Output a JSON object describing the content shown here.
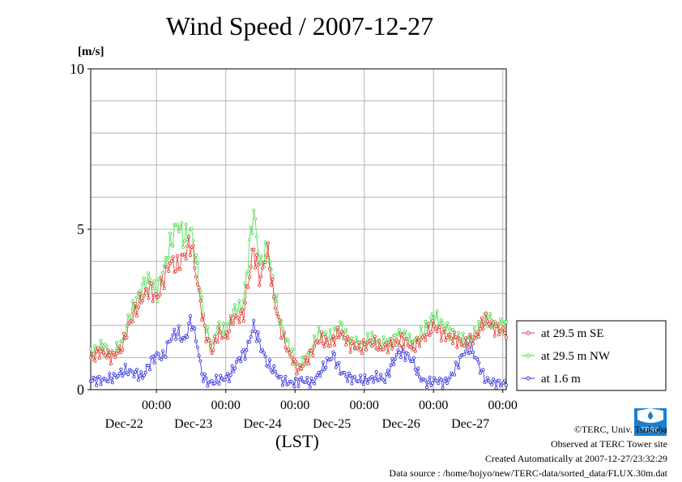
{
  "page": {
    "title": "Wind Speed / 2007-12-27",
    "y_unit": "[m/s]",
    "x_unit": "(LST)"
  },
  "credits": [
    "©TERC, Univ. Tsukuba",
    "Observed at TERC Tower site",
    "Created Automatically at 2007-12-27/23:32:29",
    "Data source : /home/hojyo/new/TERC-data/sorted_data/FLUX.30m.dat"
  ],
  "logo": {
    "text": "TERC",
    "color": "#1a7fcf"
  },
  "chart_data": {
    "type": "line",
    "title": "Wind Speed / 2007-12-27",
    "ylabel": "[m/s]",
    "xlabel": "(LST)",
    "ylim": [
      0,
      10
    ],
    "yticks": [
      0,
      5,
      10
    ],
    "xlim_days": [
      0,
      6
    ],
    "x_ticks": [
      {
        "time": "00:00",
        "date": "Dec-22"
      },
      {
        "time": "00:00",
        "date": "Dec-23"
      },
      {
        "time": "00:00",
        "date": "Dec-24"
      },
      {
        "time": "00:00",
        "date": "Dec-25"
      },
      {
        "time": "00:00",
        "date": "Dec-26"
      },
      {
        "time": "00:00",
        "date": "Dec-27"
      }
    ],
    "grid": true,
    "legend_position": "right",
    "series": [
      {
        "name": "at 29.5 m SE",
        "color": "#e83030",
        "anchors": [
          [
            0,
            1.0
          ],
          [
            0.15,
            1.2
          ],
          [
            0.3,
            1.0
          ],
          [
            0.45,
            1.3
          ],
          [
            0.55,
            2.0
          ],
          [
            0.7,
            2.7
          ],
          [
            0.85,
            3.2
          ],
          [
            0.95,
            2.8
          ],
          [
            1.05,
            3.4
          ],
          [
            1.15,
            4.0
          ],
          [
            1.25,
            3.8
          ],
          [
            1.35,
            4.2
          ],
          [
            1.45,
            4.6
          ],
          [
            1.55,
            3.2
          ],
          [
            1.65,
            1.8
          ],
          [
            1.75,
            1.2
          ],
          [
            1.85,
            1.8
          ],
          [
            1.95,
            1.6
          ],
          [
            2.05,
            2.2
          ],
          [
            2.2,
            2.3
          ],
          [
            2.35,
            4.4
          ],
          [
            2.45,
            3.4
          ],
          [
            2.55,
            4.4
          ],
          [
            2.65,
            2.8
          ],
          [
            2.75,
            1.8
          ],
          [
            2.85,
            1.2
          ],
          [
            3.0,
            0.6
          ],
          [
            3.15,
            1.0
          ],
          [
            3.3,
            1.6
          ],
          [
            3.45,
            1.4
          ],
          [
            3.6,
            1.8
          ],
          [
            3.75,
            1.4
          ],
          [
            3.9,
            1.3
          ],
          [
            4.05,
            1.5
          ],
          [
            4.2,
            1.3
          ],
          [
            4.35,
            1.4
          ],
          [
            4.5,
            1.6
          ],
          [
            4.65,
            1.3
          ],
          [
            4.8,
            1.6
          ],
          [
            4.95,
            2.0
          ],
          [
            5.1,
            1.7
          ],
          [
            5.25,
            1.6
          ],
          [
            5.4,
            1.4
          ],
          [
            5.55,
            1.6
          ],
          [
            5.7,
            2.2
          ],
          [
            5.85,
            1.9
          ],
          [
            6.0,
            1.8
          ]
        ]
      },
      {
        "name": "at 29.5 m NW",
        "color": "#44dd44",
        "anchors": [
          [
            0,
            1.1
          ],
          [
            0.15,
            1.4
          ],
          [
            0.3,
            1.1
          ],
          [
            0.45,
            1.4
          ],
          [
            0.55,
            2.2
          ],
          [
            0.7,
            3.0
          ],
          [
            0.85,
            3.5
          ],
          [
            0.95,
            3.0
          ],
          [
            1.05,
            3.7
          ],
          [
            1.15,
            4.5
          ],
          [
            1.25,
            5.2
          ],
          [
            1.35,
            4.7
          ],
          [
            1.45,
            5.0
          ],
          [
            1.55,
            3.6
          ],
          [
            1.65,
            2.0
          ],
          [
            1.75,
            1.3
          ],
          [
            1.85,
            2.0
          ],
          [
            1.95,
            1.7
          ],
          [
            2.05,
            2.4
          ],
          [
            2.2,
            2.6
          ],
          [
            2.35,
            5.6
          ],
          [
            2.45,
            3.8
          ],
          [
            2.55,
            4.5
          ],
          [
            2.65,
            3.0
          ],
          [
            2.75,
            2.0
          ],
          [
            2.85,
            1.4
          ],
          [
            3.0,
            0.7
          ],
          [
            3.15,
            1.1
          ],
          [
            3.3,
            1.8
          ],
          [
            3.45,
            1.6
          ],
          [
            3.6,
            2.0
          ],
          [
            3.75,
            1.5
          ],
          [
            3.9,
            1.4
          ],
          [
            4.05,
            1.6
          ],
          [
            4.2,
            1.4
          ],
          [
            4.35,
            1.5
          ],
          [
            4.5,
            1.8
          ],
          [
            4.65,
            1.4
          ],
          [
            4.8,
            1.8
          ],
          [
            4.95,
            2.3
          ],
          [
            5.1,
            2.0
          ],
          [
            5.25,
            1.7
          ],
          [
            5.4,
            1.5
          ],
          [
            5.55,
            1.7
          ],
          [
            5.7,
            2.3
          ],
          [
            5.85,
            2.0
          ],
          [
            6.0,
            2.0
          ]
        ]
      },
      {
        "name": "at 1.6 m",
        "color": "#3030e0",
        "anchors": [
          [
            0,
            0.3
          ],
          [
            0.2,
            0.3
          ],
          [
            0.35,
            0.4
          ],
          [
            0.5,
            0.6
          ],
          [
            0.65,
            0.5
          ],
          [
            0.75,
            0.4
          ],
          [
            0.85,
            0.8
          ],
          [
            0.95,
            1.1
          ],
          [
            1.05,
            1.0
          ],
          [
            1.15,
            1.6
          ],
          [
            1.25,
            1.8
          ],
          [
            1.35,
            1.5
          ],
          [
            1.45,
            2.2
          ],
          [
            1.55,
            1.3
          ],
          [
            1.6,
            0.5
          ],
          [
            1.7,
            0.2
          ],
          [
            1.85,
            0.3
          ],
          [
            2.0,
            0.4
          ],
          [
            2.15,
            1.0
          ],
          [
            2.25,
            1.2
          ],
          [
            2.35,
            2.0
          ],
          [
            2.45,
            1.4
          ],
          [
            2.55,
            0.8
          ],
          [
            2.65,
            0.6
          ],
          [
            2.75,
            0.3
          ],
          [
            2.9,
            0.2
          ],
          [
            3.05,
            0.3
          ],
          [
            3.2,
            0.2
          ],
          [
            3.3,
            0.5
          ],
          [
            3.4,
            0.8
          ],
          [
            3.5,
            1.1
          ],
          [
            3.6,
            0.6
          ],
          [
            3.7,
            0.4
          ],
          [
            3.85,
            0.3
          ],
          [
            4.0,
            0.3
          ],
          [
            4.15,
            0.4
          ],
          [
            4.25,
            0.3
          ],
          [
            4.35,
            0.8
          ],
          [
            4.45,
            1.2
          ],
          [
            4.55,
            1.1
          ],
          [
            4.65,
            0.9
          ],
          [
            4.75,
            0.4
          ],
          [
            4.85,
            0.2
          ],
          [
            5.0,
            0.3
          ],
          [
            5.1,
            0.2
          ],
          [
            5.2,
            0.4
          ],
          [
            5.3,
            0.8
          ],
          [
            5.4,
            1.2
          ],
          [
            5.5,
            1.3
          ],
          [
            5.6,
            0.8
          ],
          [
            5.7,
            0.3
          ],
          [
            5.85,
            0.2
          ],
          [
            6.0,
            0.2
          ]
        ]
      }
    ]
  }
}
